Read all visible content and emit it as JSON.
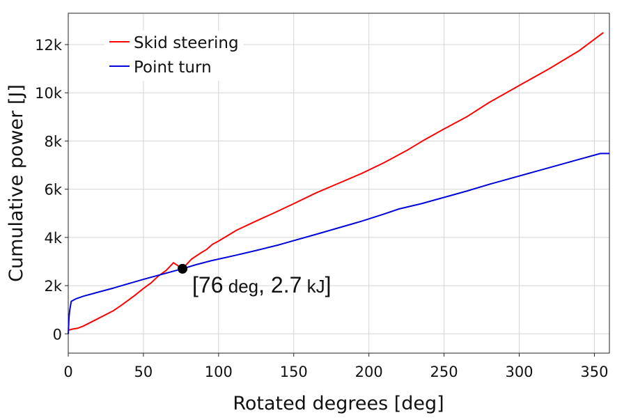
{
  "chart_data": {
    "type": "line",
    "xlabel": "Rotated degrees [deg]",
    "ylabel": "Cumulative power [J]",
    "xlim": [
      0,
      360
    ],
    "ylim": [
      -800,
      13300
    ],
    "grid": true,
    "legend_position": "top-left",
    "x_ticks": [
      {
        "value": 0,
        "label": "0"
      },
      {
        "value": 50,
        "label": "50"
      },
      {
        "value": 100,
        "label": "100"
      },
      {
        "value": 150,
        "label": "150"
      },
      {
        "value": 200,
        "label": "200"
      },
      {
        "value": 250,
        "label": "250"
      },
      {
        "value": 300,
        "label": "300"
      },
      {
        "value": 350,
        "label": "350"
      }
    ],
    "y_ticks": [
      {
        "value": 0,
        "label": "0"
      },
      {
        "value": 2000,
        "label": "2k"
      },
      {
        "value": 4000,
        "label": "4k"
      },
      {
        "value": 6000,
        "label": "6k"
      },
      {
        "value": 8000,
        "label": "8k"
      },
      {
        "value": 10000,
        "label": "10k"
      },
      {
        "value": 12000,
        "label": "12k"
      }
    ],
    "series": [
      {
        "name": "Skid steering",
        "color": "#ff0000",
        "x": [
          0,
          3,
          6,
          10,
          15,
          20,
          25,
          30,
          35,
          40,
          45,
          50,
          55,
          60,
          65,
          70,
          76,
          82,
          88,
          92,
          96,
          100,
          112,
          125,
          137,
          150,
          165,
          180,
          195,
          210,
          225,
          237,
          250,
          265,
          280,
          300,
          320,
          340,
          356
        ],
        "y": [
          150,
          200,
          230,
          320,
          480,
          640,
          800,
          960,
          1170,
          1400,
          1630,
          1880,
          2110,
          2400,
          2620,
          2950,
          2700,
          3100,
          3350,
          3500,
          3720,
          3850,
          4300,
          4680,
          5020,
          5400,
          5850,
          6250,
          6650,
          7100,
          7600,
          8050,
          8500,
          9000,
          9600,
          10300,
          11000,
          11750,
          12500
        ]
      },
      {
        "name": "Point turn",
        "color": "#0000dd",
        "x": [
          0,
          0.5,
          1,
          2,
          5,
          10,
          20,
          30,
          40,
          50,
          60,
          70,
          76,
          85,
          95,
          110,
          125,
          140,
          150,
          165,
          180,
          195,
          210,
          220,
          235,
          250,
          265,
          280,
          295,
          310,
          325,
          340,
          354,
          360
        ],
        "y": [
          0,
          700,
          1000,
          1350,
          1450,
          1560,
          1730,
          1900,
          2080,
          2260,
          2430,
          2600,
          2700,
          2870,
          3030,
          3240,
          3460,
          3690,
          3870,
          4130,
          4400,
          4670,
          4970,
          5180,
          5400,
          5660,
          5920,
          6200,
          6460,
          6720,
          6980,
          7240,
          7480,
          7480
        ]
      }
    ],
    "annotation": {
      "point": {
        "x": 76,
        "y": 2700
      },
      "text_open": "[76",
      "text_unit1": " deg",
      "text_mid": ", 2.7",
      "text_unit2": " kJ",
      "text_close": "]"
    }
  }
}
